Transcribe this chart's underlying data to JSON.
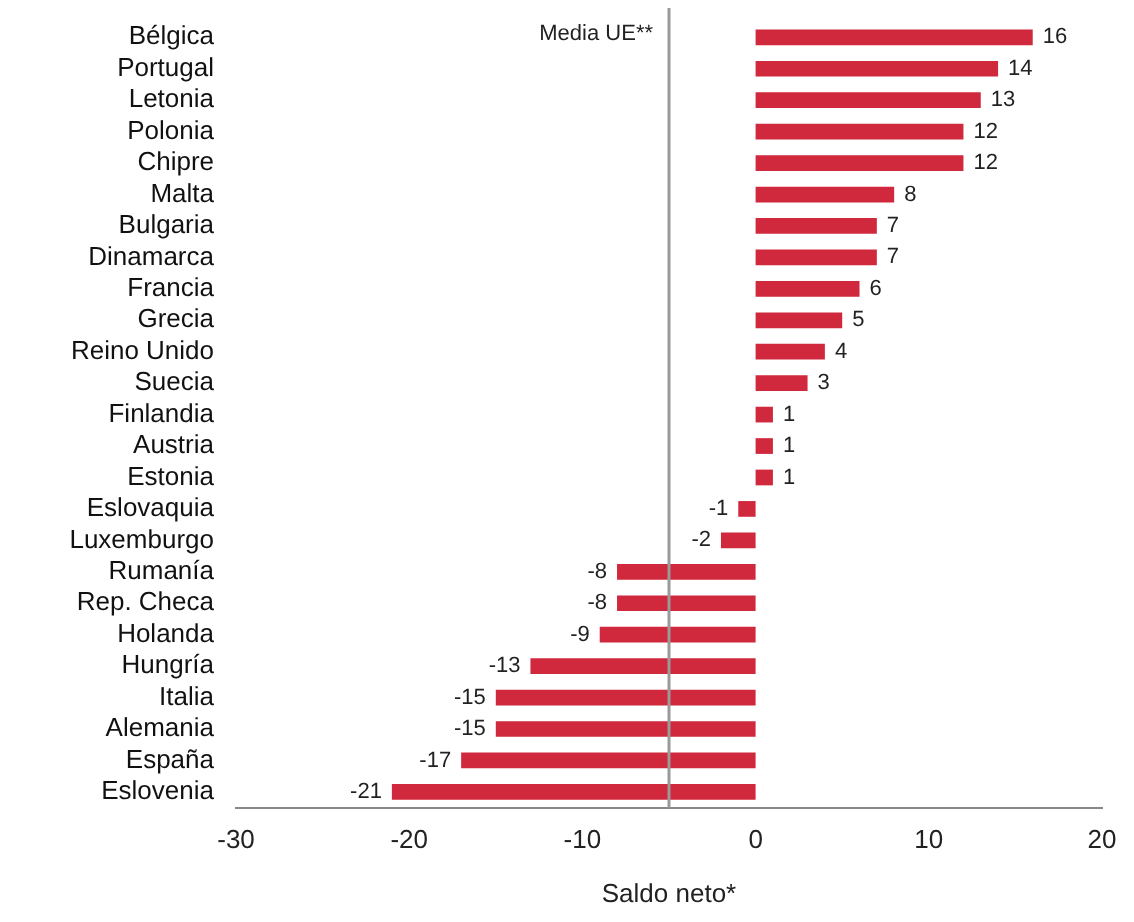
{
  "chart_data": {
    "type": "bar",
    "orientation": "horizontal",
    "xlabel": "Saldo neto*",
    "categories": [
      "Bélgica",
      "Portugal",
      "Letonia",
      "Polonia",
      "Chipre",
      "Malta",
      "Bulgaria",
      "Dinamarca",
      "Francia",
      "Grecia",
      "Reino Unido",
      "Suecia",
      "Finlandia",
      "Austria",
      "Estonia",
      "Eslovaquia",
      "Luxemburgo",
      "Rumanía",
      "Rep. Checa",
      "Holanda",
      "Hungría",
      "Italia",
      "Alemania",
      "España",
      "Eslovenia"
    ],
    "values": [
      16,
      14,
      13,
      12,
      12,
      8,
      7,
      7,
      6,
      5,
      4,
      3,
      1,
      1,
      1,
      -1,
      -2,
      -8,
      -8,
      -9,
      -13,
      -15,
      -15,
      -17,
      -21
    ],
    "color": "#d0283c",
    "xlim": [
      -30,
      20
    ],
    "xticks": [
      -30,
      -20,
      -10,
      0,
      10,
      20
    ],
    "ref_lines": [
      {
        "axis": "x",
        "value": -5,
        "label": "Media UE**",
        "color": "#9a9a9a"
      }
    ],
    "data_labels": true,
    "grid": false,
    "legend": false
  }
}
